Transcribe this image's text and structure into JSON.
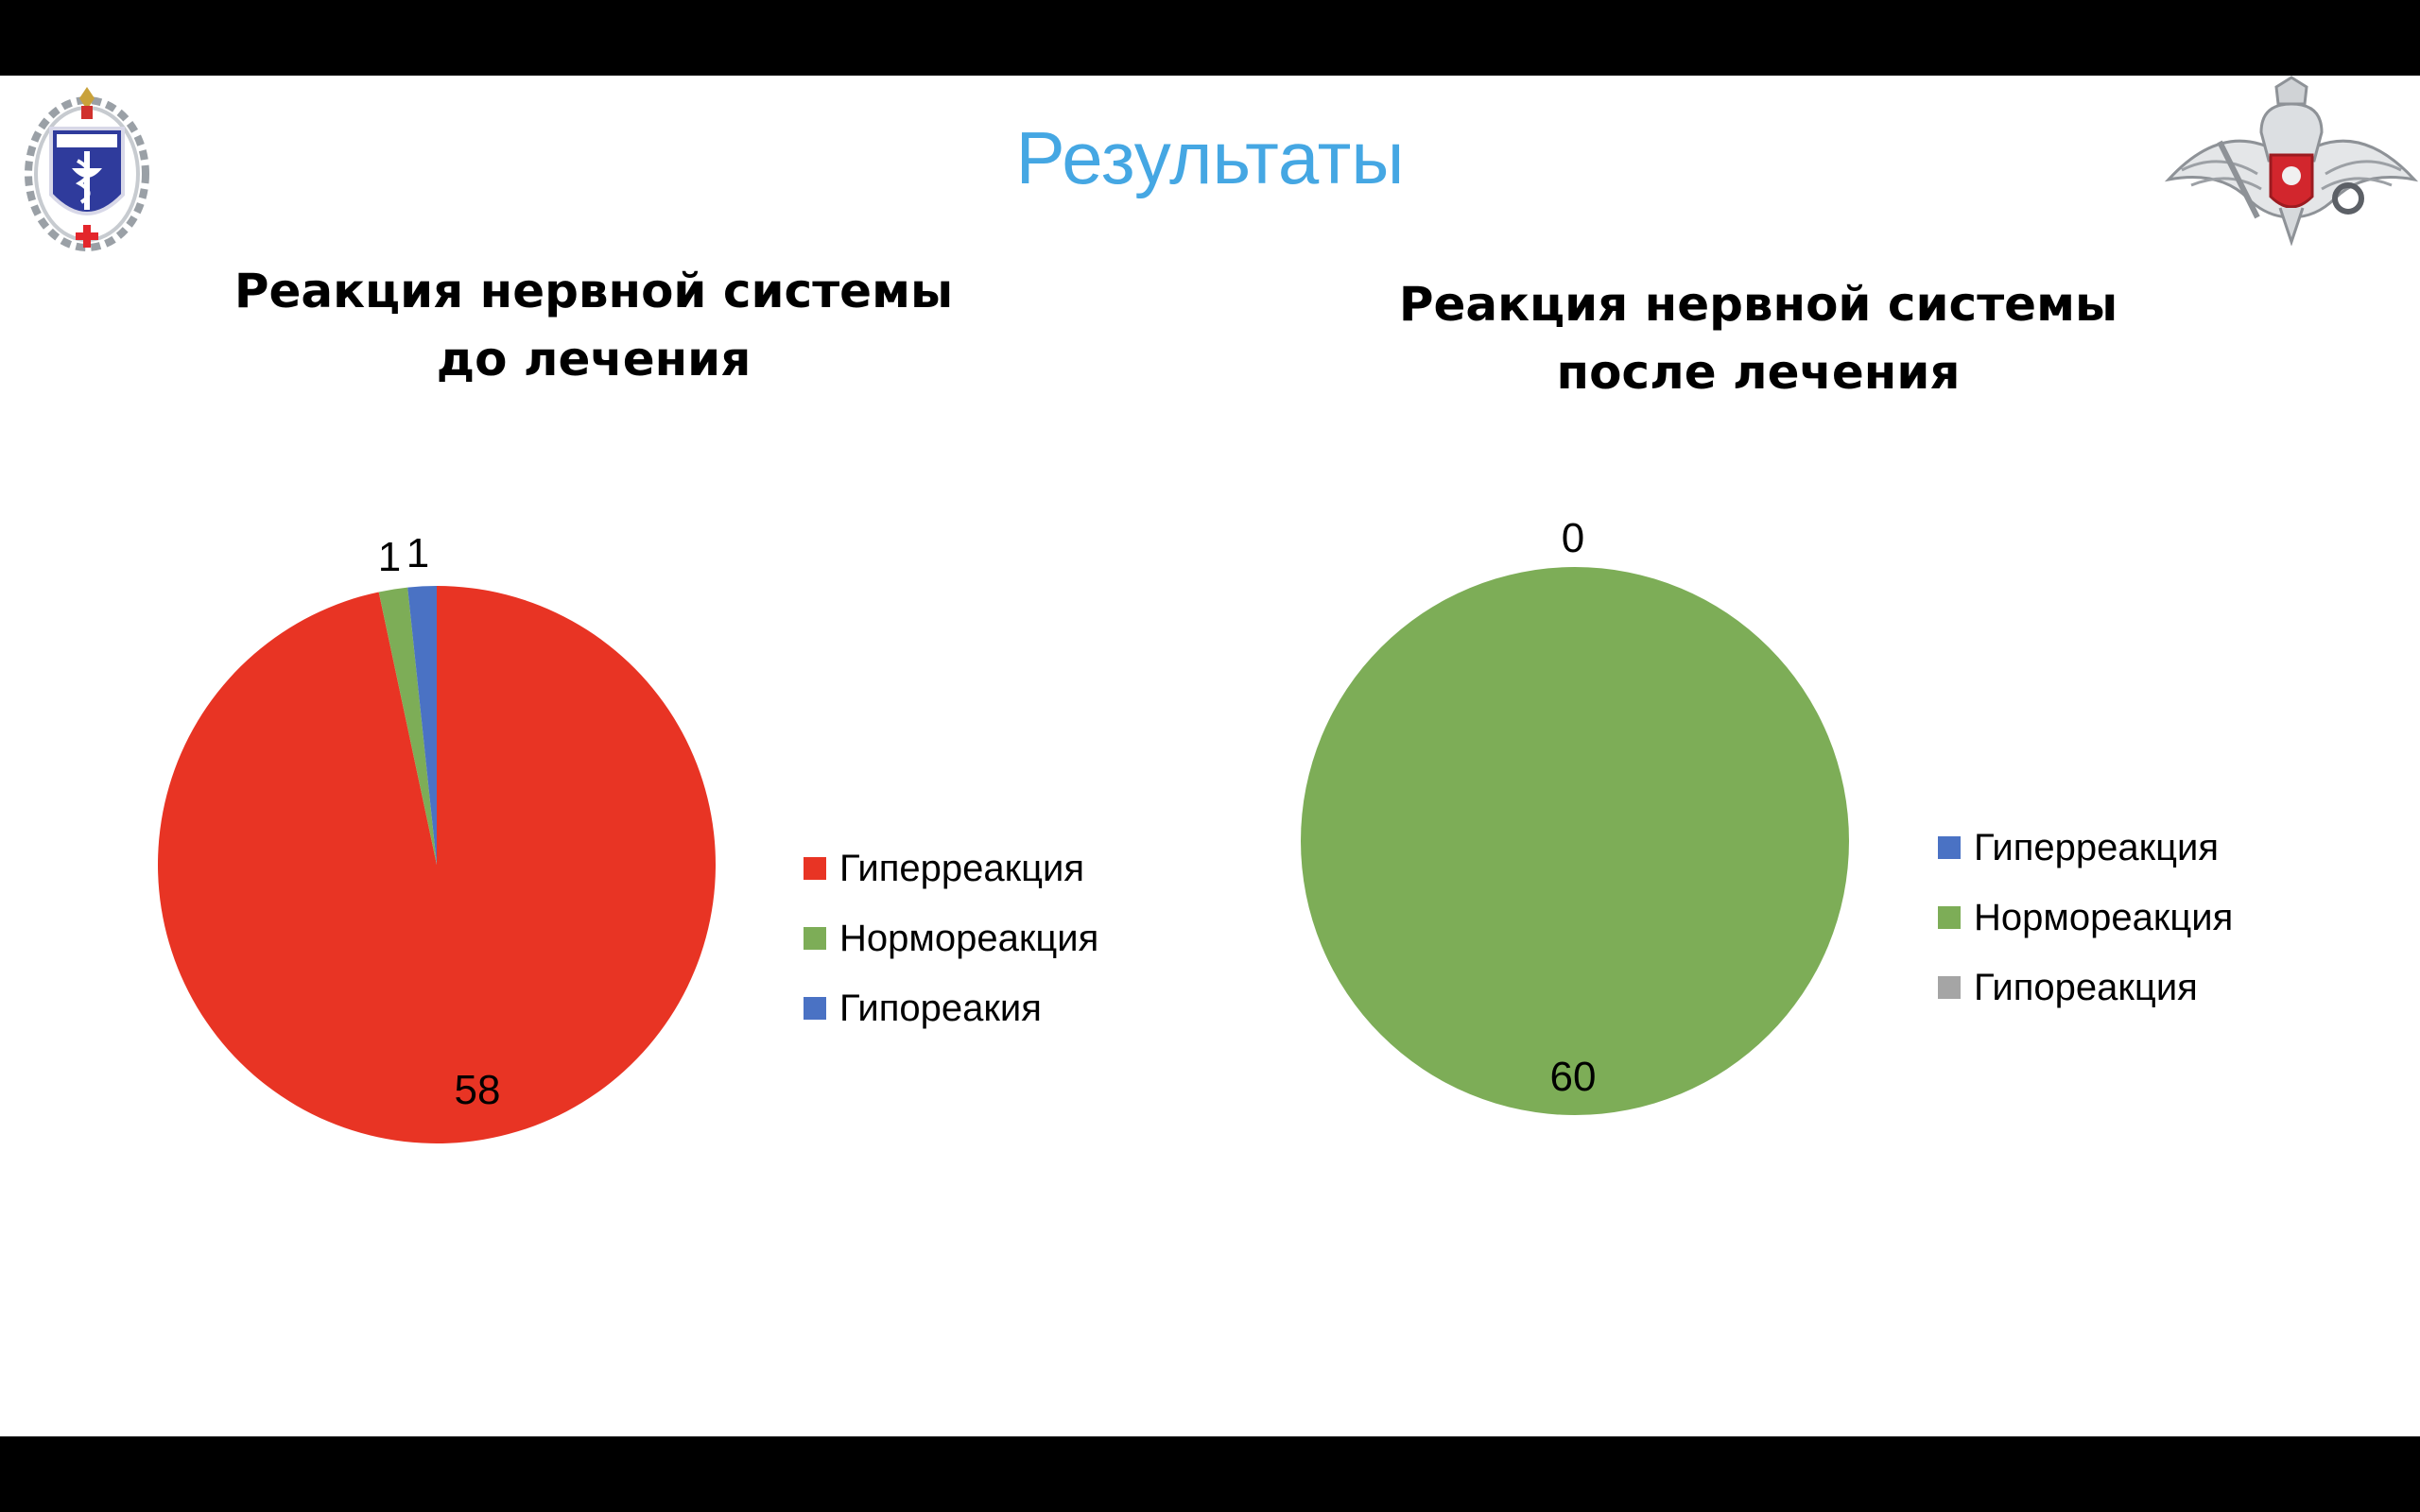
{
  "slide_title": "Результаты",
  "chart_data": [
    {
      "type": "pie",
      "title": "Реакция нервной системы до лечения",
      "categories": [
        "Гиперреакция",
        "Нормореакция",
        "Гипореакия"
      ],
      "values": [
        58,
        1,
        1
      ],
      "colors": [
        "#e83424",
        "#7dad57",
        "#4a72c4"
      ],
      "legend_position": "right",
      "data_labels": [
        "58",
        "1",
        "1"
      ]
    },
    {
      "type": "pie",
      "title": "Реакция нервной системы после лечения",
      "categories": [
        "Гиперреакция",
        "Нормореакция",
        "Гипореакция"
      ],
      "values": [
        0,
        60,
        0
      ],
      "colors": [
        "#4a72c4",
        "#7dad57",
        "#a5a5a5"
      ],
      "legend_position": "right",
      "data_labels": [
        "0",
        "60",
        ""
      ]
    }
  ],
  "icons": {
    "left_emblem": "military-medical-academy-emblem-icon",
    "right_emblem": "ministry-of-defense-eagle-emblem-icon"
  }
}
